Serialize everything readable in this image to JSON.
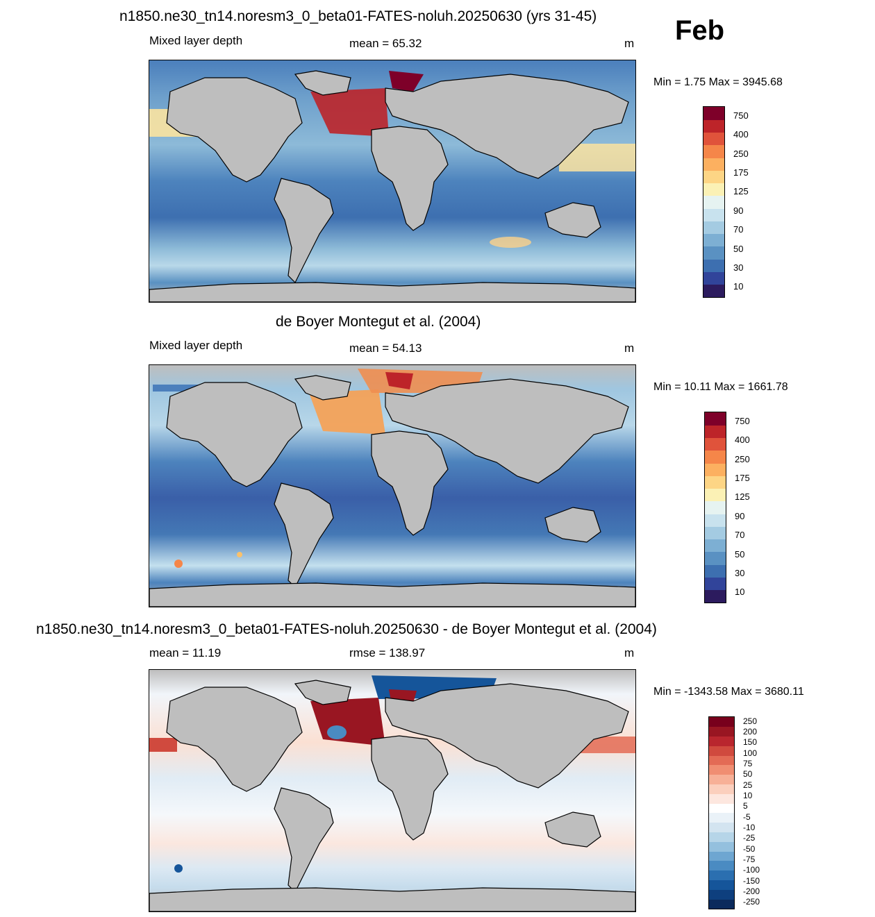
{
  "month": "Feb",
  "panels": [
    {
      "title": "n1850.ne30_tn14.noresm3_0_beta01-FATES-noluh.20250630 (yrs 31-45)",
      "left_label": "Mixed layer depth",
      "center_label": "mean =  65.32",
      "units": "m",
      "minmax": "Min =   1.75 Max = 3945.68",
      "colorbar": {
        "colors": [
          "#2c1b5e",
          "#31449a",
          "#3d6fb0",
          "#5a91c2",
          "#7dafd3",
          "#a4cbe2",
          "#c8e2ee",
          "#e6f3f1",
          "#fbf1b5",
          "#fdd585",
          "#fcb060",
          "#f58649",
          "#e0533b",
          "#bd2429",
          "#7e0029"
        ],
        "labels": [
          "10",
          "30",
          "50",
          "70",
          "90",
          "125",
          "175",
          "250",
          "400",
          "750"
        ]
      }
    },
    {
      "title": "de Boyer Montegut et al. (2004)",
      "left_label": "Mixed layer depth",
      "center_label": "mean =  54.13",
      "units": "m",
      "minmax": "Min =  10.11 Max = 1661.78",
      "colorbar": {
        "colors": [
          "#2c1b5e",
          "#31449a",
          "#3d6fb0",
          "#5a91c2",
          "#7dafd3",
          "#a4cbe2",
          "#c8e2ee",
          "#e6f3f1",
          "#fbf1b5",
          "#fdd585",
          "#fcb060",
          "#f58649",
          "#e0533b",
          "#bd2429",
          "#7e0029"
        ],
        "labels": [
          "10",
          "30",
          "50",
          "70",
          "90",
          "125",
          "175",
          "250",
          "400",
          "750"
        ]
      }
    },
    {
      "title": "n1850.ne30_tn14.noresm3_0_beta01-FATES-noluh.20250630 - de Boyer Montegut et al. (2004)",
      "left_label": "mean =  11.19",
      "center_label": "rmse = 138.97",
      "units": "m",
      "minmax": "Min = -1343.58 Max = 3680.11",
      "colorbar": {
        "colors": [
          "#0b2a5c",
          "#0e3f7e",
          "#15559a",
          "#2b6fb0",
          "#4a8bc2",
          "#6ea6d1",
          "#94c0de",
          "#b6d5e8",
          "#d3e4f0",
          "#eaf2f8",
          "#ffffff",
          "#fde7df",
          "#fbcfbd",
          "#f7b097",
          "#f08e72",
          "#e36b55",
          "#d04a3e",
          "#b9262e",
          "#991622",
          "#78001c"
        ],
        "labels": [
          "-250",
          "-200",
          "-150",
          "-100",
          "-75",
          "-50",
          "-25",
          "-10",
          "-5",
          "5",
          "10",
          "25",
          "50",
          "75",
          "100",
          "150",
          "200",
          "250"
        ]
      }
    }
  ]
}
